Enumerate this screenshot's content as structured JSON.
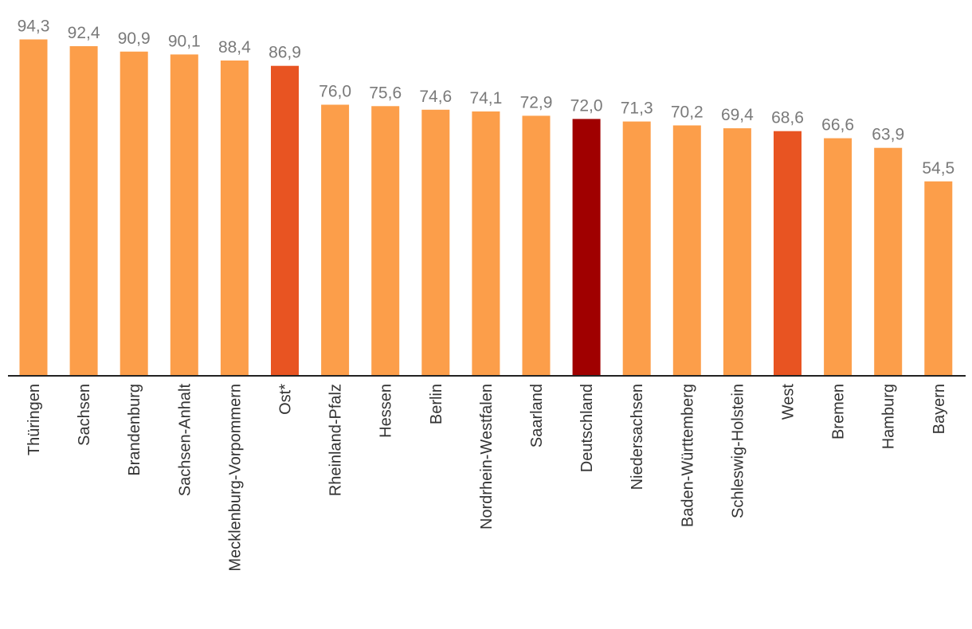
{
  "chart_data": {
    "type": "bar",
    "title": "",
    "xlabel": "",
    "ylabel": "",
    "ylim": [
      0,
      100
    ],
    "grid": false,
    "legend": "none",
    "number_format": "de",
    "categories": [
      "Thüringen",
      "Sachsen",
      "Brandenburg",
      "Sachsen-Anhalt",
      "Mecklenburg-Vorpommern",
      "Ost*",
      "Rheinland-Pfalz",
      "Hessen",
      "Berlin",
      "Nordrhein-Westfalen",
      "Saarland",
      "Deutschland",
      "Niedersachsen",
      "Baden-Württemberg",
      "Schleswig-Holstein",
      "West",
      "Bremen",
      "Hamburg",
      "Bayern"
    ],
    "values": [
      94.3,
      92.4,
      90.9,
      90.1,
      88.4,
      86.9,
      76.0,
      75.6,
      74.6,
      74.1,
      72.9,
      72.0,
      71.3,
      70.2,
      69.4,
      68.6,
      66.6,
      63.9,
      54.5
    ],
    "value_labels": [
      "94,3",
      "92,4",
      "90,9",
      "90,1",
      "88,4",
      "86,9",
      "76,0",
      "75,6",
      "74,6",
      "74,1",
      "72,9",
      "72,0",
      "71,3",
      "70,2",
      "69,4",
      "68,6",
      "66,6",
      "63,9",
      "54,5"
    ],
    "bar_colors": [
      "#fc9e4a",
      "#fc9e4a",
      "#fc9e4a",
      "#fc9e4a",
      "#fc9e4a",
      "#e85422",
      "#fc9e4a",
      "#fc9e4a",
      "#fc9e4a",
      "#fc9e4a",
      "#fc9e4a",
      "#a00000",
      "#fc9e4a",
      "#fc9e4a",
      "#fc9e4a",
      "#e85422",
      "#fc9e4a",
      "#fc9e4a",
      "#fc9e4a"
    ]
  },
  "colors": {
    "baseline": "#222222",
    "value_label": "#7a7a7a",
    "category_label": "#333333"
  }
}
